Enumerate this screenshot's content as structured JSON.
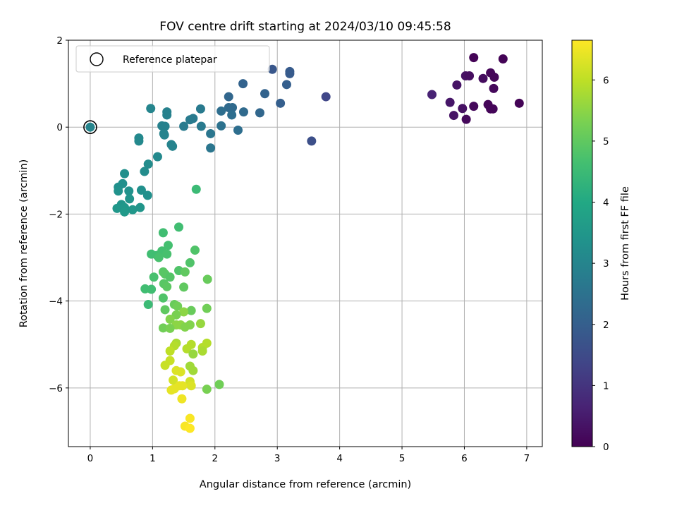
{
  "chart_data": {
    "type": "scatter",
    "title": "FOV centre drift starting at 2024/03/10 09:45:58",
    "xlabel": "Angular distance from reference (arcmin)",
    "ylabel": "Rotation from reference (arcmin)",
    "xlim": [
      -0.35,
      7.25
    ],
    "ylim": [
      -7.35,
      2.0
    ],
    "xticks": [
      0,
      1,
      2,
      3,
      4,
      5,
      6,
      7
    ],
    "yticks": [
      -6,
      -4,
      -2,
      0,
      2
    ],
    "grid": true,
    "legend": {
      "position": "top-left",
      "entries": [
        "Reference platepar"
      ]
    },
    "reference_point": {
      "x": 0,
      "y": 0
    },
    "colorbar": {
      "label": "Hours from first FF file",
      "range": [
        0,
        6.65
      ],
      "ticks": [
        0,
        1,
        2,
        3,
        4,
        5,
        6
      ],
      "colormap": "viridis"
    },
    "points": [
      {
        "x": 6.15,
        "y": 1.6,
        "c": 0.05
      },
      {
        "x": 6.62,
        "y": 1.57,
        "c": 0.05
      },
      {
        "x": 6.42,
        "y": 1.25,
        "c": 0.1
      },
      {
        "x": 6.02,
        "y": 1.18,
        "c": 0.3
      },
      {
        "x": 6.08,
        "y": 1.18,
        "c": 0.25
      },
      {
        "x": 6.3,
        "y": 1.12,
        "c": 0.2
      },
      {
        "x": 6.48,
        "y": 1.15,
        "c": 0.1
      },
      {
        "x": 5.88,
        "y": 0.97,
        "c": 0.35
      },
      {
        "x": 6.47,
        "y": 0.89,
        "c": 0.15
      },
      {
        "x": 5.48,
        "y": 0.75,
        "c": 0.65
      },
      {
        "x": 5.77,
        "y": 0.57,
        "c": 0.4
      },
      {
        "x": 6.88,
        "y": 0.55,
        "c": 0.05
      },
      {
        "x": 6.38,
        "y": 0.52,
        "c": 0.1
      },
      {
        "x": 6.15,
        "y": 0.48,
        "c": 0.15
      },
      {
        "x": 5.97,
        "y": 0.43,
        "c": 0.3
      },
      {
        "x": 6.42,
        "y": 0.42,
        "c": 0.1
      },
      {
        "x": 6.46,
        "y": 0.42,
        "c": 0.1
      },
      {
        "x": 5.83,
        "y": 0.27,
        "c": 0.35
      },
      {
        "x": 6.03,
        "y": 0.18,
        "c": 0.15
      },
      {
        "x": 3.78,
        "y": 0.7,
        "c": 1.4
      },
      {
        "x": 3.55,
        "y": -0.32,
        "c": 1.6
      },
      {
        "x": 2.92,
        "y": 1.33,
        "c": 1.8
      },
      {
        "x": 3.2,
        "y": 1.28,
        "c": 1.9
      },
      {
        "x": 3.2,
        "y": 1.23,
        "c": 1.9
      },
      {
        "x": 3.15,
        "y": 0.98,
        "c": 2.0
      },
      {
        "x": 2.45,
        "y": 1.0,
        "c": 2.1
      },
      {
        "x": 2.8,
        "y": 0.77,
        "c": 2.1
      },
      {
        "x": 2.22,
        "y": 0.7,
        "c": 2.2
      },
      {
        "x": 3.05,
        "y": 0.55,
        "c": 2.0
      },
      {
        "x": 2.22,
        "y": 0.45,
        "c": 2.3
      },
      {
        "x": 2.28,
        "y": 0.45,
        "c": 2.3
      },
      {
        "x": 2.1,
        "y": 0.37,
        "c": 2.4
      },
      {
        "x": 2.46,
        "y": 0.35,
        "c": 2.3
      },
      {
        "x": 2.72,
        "y": 0.33,
        "c": 2.2
      },
      {
        "x": 2.27,
        "y": 0.28,
        "c": 2.4
      },
      {
        "x": 2.1,
        "y": 0.03,
        "c": 2.5
      },
      {
        "x": 2.37,
        "y": -0.07,
        "c": 2.4
      },
      {
        "x": 1.93,
        "y": -0.15,
        "c": 2.6
      },
      {
        "x": 1.93,
        "y": -0.48,
        "c": 2.6
      },
      {
        "x": 1.77,
        "y": 0.42,
        "c": 2.7
      },
      {
        "x": 1.65,
        "y": 0.2,
        "c": 2.7
      },
      {
        "x": 1.6,
        "y": 0.17,
        "c": 2.75
      },
      {
        "x": 1.78,
        "y": 0.02,
        "c": 2.7
      },
      {
        "x": 1.5,
        "y": 0.02,
        "c": 2.75
      },
      {
        "x": 1.23,
        "y": 0.35,
        "c": 2.9
      },
      {
        "x": 1.23,
        "y": 0.28,
        "c": 2.9
      },
      {
        "x": 1.15,
        "y": 0.03,
        "c": 2.9
      },
      {
        "x": 1.2,
        "y": 0.02,
        "c": 2.9
      },
      {
        "x": 1.18,
        "y": -0.15,
        "c": 2.95
      },
      {
        "x": 1.19,
        "y": -0.18,
        "c": 2.95
      },
      {
        "x": 1.3,
        "y": -0.4,
        "c": 2.95
      },
      {
        "x": 1.32,
        "y": -0.44,
        "c": 2.95
      },
      {
        "x": 0.97,
        "y": 0.43,
        "c": 3.0
      },
      {
        "x": 0.78,
        "y": -0.25,
        "c": 3.1
      },
      {
        "x": 0.78,
        "y": -0.32,
        "c": 3.1
      },
      {
        "x": 1.08,
        "y": -0.68,
        "c": 3.1
      },
      {
        "x": 0.93,
        "y": -0.85,
        "c": 3.2
      },
      {
        "x": 0.87,
        "y": -1.02,
        "c": 3.2
      },
      {
        "x": 0.55,
        "y": -1.07,
        "c": 3.3
      },
      {
        "x": 0.52,
        "y": -1.3,
        "c": 3.3
      },
      {
        "x": 0.45,
        "y": -1.38,
        "c": 3.3
      },
      {
        "x": 0.45,
        "y": -1.47,
        "c": 3.35
      },
      {
        "x": 0.62,
        "y": -1.47,
        "c": 3.35
      },
      {
        "x": 0.82,
        "y": -1.45,
        "c": 3.3
      },
      {
        "x": 0.92,
        "y": -1.57,
        "c": 3.3
      },
      {
        "x": 0.63,
        "y": -1.65,
        "c": 3.4
      },
      {
        "x": 0.5,
        "y": -1.78,
        "c": 3.45
      },
      {
        "x": 0.43,
        "y": -1.87,
        "c": 3.5
      },
      {
        "x": 0.55,
        "y": -1.85,
        "c": 3.5
      },
      {
        "x": 0.55,
        "y": -1.95,
        "c": 3.55
      },
      {
        "x": 0.68,
        "y": -1.9,
        "c": 3.5
      },
      {
        "x": 0.8,
        "y": -1.85,
        "c": 3.45
      },
      {
        "x": 1.7,
        "y": -1.43,
        "c": 4.5
      },
      {
        "x": 1.42,
        "y": -2.3,
        "c": 4.6
      },
      {
        "x": 1.17,
        "y": -2.43,
        "c": 4.6
      },
      {
        "x": 1.25,
        "y": -2.72,
        "c": 4.65
      },
      {
        "x": 1.68,
        "y": -2.83,
        "c": 4.8
      },
      {
        "x": 0.98,
        "y": -2.92,
        "c": 4.6
      },
      {
        "x": 1.07,
        "y": -2.95,
        "c": 4.6
      },
      {
        "x": 1.15,
        "y": -2.85,
        "c": 4.65
      },
      {
        "x": 1.23,
        "y": -2.92,
        "c": 4.7
      },
      {
        "x": 1.1,
        "y": -3.0,
        "c": 4.7
      },
      {
        "x": 1.6,
        "y": -3.12,
        "c": 4.8
      },
      {
        "x": 1.42,
        "y": -3.3,
        "c": 4.8
      },
      {
        "x": 1.17,
        "y": -3.33,
        "c": 4.9
      },
      {
        "x": 1.2,
        "y": -3.38,
        "c": 4.9
      },
      {
        "x": 1.02,
        "y": -3.45,
        "c": 4.7
      },
      {
        "x": 1.28,
        "y": -3.45,
        "c": 4.85
      },
      {
        "x": 1.52,
        "y": -3.33,
        "c": 5.0
      },
      {
        "x": 1.88,
        "y": -3.5,
        "c": 5.1
      },
      {
        "x": 1.18,
        "y": -3.6,
        "c": 4.9
      },
      {
        "x": 1.23,
        "y": -3.67,
        "c": 4.95
      },
      {
        "x": 1.5,
        "y": -3.68,
        "c": 5.0
      },
      {
        "x": 0.88,
        "y": -3.72,
        "c": 4.6
      },
      {
        "x": 0.98,
        "y": -3.73,
        "c": 4.6
      },
      {
        "x": 1.17,
        "y": -3.93,
        "c": 4.8
      },
      {
        "x": 0.93,
        "y": -4.08,
        "c": 4.5
      },
      {
        "x": 1.2,
        "y": -4.2,
        "c": 5.0
      },
      {
        "x": 1.35,
        "y": -4.08,
        "c": 5.1
      },
      {
        "x": 1.4,
        "y": -4.12,
        "c": 5.2
      },
      {
        "x": 1.62,
        "y": -4.22,
        "c": 5.1
      },
      {
        "x": 1.87,
        "y": -4.17,
        "c": 5.2
      },
      {
        "x": 1.5,
        "y": -4.25,
        "c": 5.5
      },
      {
        "x": 1.38,
        "y": -4.32,
        "c": 5.3
      },
      {
        "x": 1.28,
        "y": -4.42,
        "c": 5.4
      },
      {
        "x": 1.38,
        "y": -4.55,
        "c": 5.5
      },
      {
        "x": 1.45,
        "y": -4.55,
        "c": 5.5
      },
      {
        "x": 1.52,
        "y": -4.6,
        "c": 5.4
      },
      {
        "x": 1.6,
        "y": -4.55,
        "c": 5.4
      },
      {
        "x": 1.17,
        "y": -4.62,
        "c": 5.2
      },
      {
        "x": 1.28,
        "y": -4.63,
        "c": 5.3
      },
      {
        "x": 1.77,
        "y": -4.52,
        "c": 5.6
      },
      {
        "x": 1.38,
        "y": -4.97,
        "c": 5.8
      },
      {
        "x": 1.35,
        "y": -5.03,
        "c": 5.9
      },
      {
        "x": 1.62,
        "y": -5.0,
        "c": 5.9
      },
      {
        "x": 1.87,
        "y": -4.97,
        "c": 5.9
      },
      {
        "x": 1.8,
        "y": -5.07,
        "c": 5.9
      },
      {
        "x": 1.55,
        "y": -5.1,
        "c": 5.9
      },
      {
        "x": 1.28,
        "y": -5.15,
        "c": 6.0
      },
      {
        "x": 1.8,
        "y": -5.15,
        "c": 5.8
      },
      {
        "x": 1.65,
        "y": -5.22,
        "c": 5.6
      },
      {
        "x": 1.28,
        "y": -5.37,
        "c": 6.1
      },
      {
        "x": 1.2,
        "y": -5.48,
        "c": 6.1
      },
      {
        "x": 1.6,
        "y": -5.5,
        "c": 5.7
      },
      {
        "x": 1.65,
        "y": -5.6,
        "c": 5.7
      },
      {
        "x": 1.38,
        "y": -5.6,
        "c": 6.3
      },
      {
        "x": 1.45,
        "y": -5.63,
        "c": 6.3
      },
      {
        "x": 1.33,
        "y": -5.82,
        "c": 6.2
      },
      {
        "x": 1.6,
        "y": -5.85,
        "c": 6.2
      },
      {
        "x": 1.62,
        "y": -5.95,
        "c": 6.3
      },
      {
        "x": 1.43,
        "y": -5.95,
        "c": 6.4
      },
      {
        "x": 1.48,
        "y": -5.95,
        "c": 6.4
      },
      {
        "x": 1.3,
        "y": -6.05,
        "c": 6.4
      },
      {
        "x": 1.35,
        "y": -6.02,
        "c": 6.4
      },
      {
        "x": 1.87,
        "y": -6.03,
        "c": 5.3
      },
      {
        "x": 2.07,
        "y": -5.92,
        "c": 5.2
      },
      {
        "x": 1.47,
        "y": -6.25,
        "c": 6.5
      },
      {
        "x": 1.6,
        "y": -6.7,
        "c": 6.6
      },
      {
        "x": 1.52,
        "y": -6.88,
        "c": 6.6
      },
      {
        "x": 1.6,
        "y": -6.93,
        "c": 6.65
      }
    ]
  }
}
